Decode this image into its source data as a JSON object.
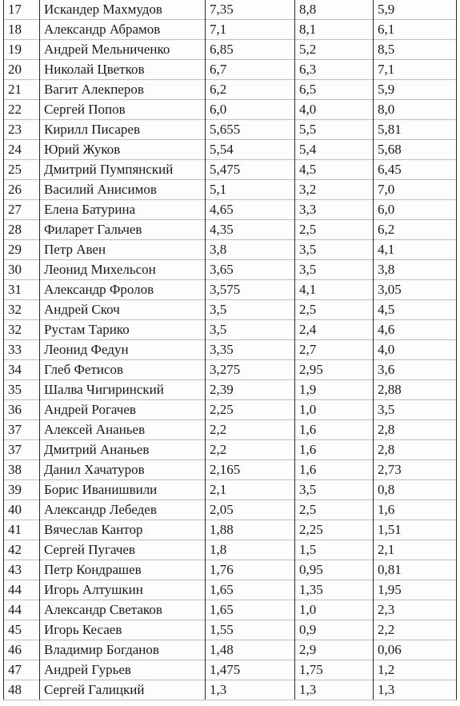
{
  "table": {
    "rows": [
      {
        "rank": "17",
        "name": "Искандер Махмудов",
        "v1": "7,35",
        "v2": "8,8",
        "v3": "5,9"
      },
      {
        "rank": "18",
        "name": "Александр Абрамов",
        "v1": "7,1",
        "v2": "8,1",
        "v3": "6,1"
      },
      {
        "rank": "19",
        "name": "Андрей Мельниченко",
        "v1": "6,85",
        "v2": "5,2",
        "v3": "8,5"
      },
      {
        "rank": "20",
        "name": "Николай Цветков",
        "v1": "6,7",
        "v2": "6,3",
        "v3": "7,1"
      },
      {
        "rank": "21",
        "name": "Вагит Алекперов",
        "v1": "6,2",
        "v2": "6,5",
        "v3": "5,9"
      },
      {
        "rank": "22",
        "name": "Сергей Попов",
        "v1": "6,0",
        "v2": "4,0",
        "v3": "8,0"
      },
      {
        "rank": "23",
        "name": "Кирилл Писарев",
        "v1": "5,655",
        "v2": "5,5",
        "v3": "5,81"
      },
      {
        "rank": "24",
        "name": "Юрий Жуков",
        "v1": "5,54",
        "v2": "5,4",
        "v3": "5,68"
      },
      {
        "rank": "25",
        "name": "Дмитрий Пумпянский",
        "v1": "5,475",
        "v2": "4,5",
        "v3": "6,45"
      },
      {
        "rank": "26",
        "name": "Василий Анисимов",
        "v1": "5,1",
        "v2": "3,2",
        "v3": "7,0"
      },
      {
        "rank": "27",
        "name": "Елена Батурина",
        "v1": "4,65",
        "v2": "3,3",
        "v3": "6,0"
      },
      {
        "rank": "28",
        "name": "Филарет Гальчев",
        "v1": "4,35",
        "v2": "2,5",
        "v3": "6,2"
      },
      {
        "rank": "29",
        "name": "Петр Авен",
        "v1": "3,8",
        "v2": "3,5",
        "v3": "4,1"
      },
      {
        "rank": "30",
        "name": "Леонид Михельсон",
        "v1": "3,65",
        "v2": "3,5",
        "v3": "3,8"
      },
      {
        "rank": "31",
        "name": "Александр Фролов",
        "v1": "3,575",
        "v2": "4,1",
        "v3": "3,05"
      },
      {
        "rank": "32",
        "name": "Андрей Скоч",
        "v1": "3,5",
        "v2": "2,5",
        "v3": "4,5"
      },
      {
        "rank": "32",
        "name": "Рустам Тарико",
        "v1": "3,5",
        "v2": "2,4",
        "v3": "4,6"
      },
      {
        "rank": "33",
        "name": "Леонид Федун",
        "v1": "3,35",
        "v2": "2,7",
        "v3": "4,0"
      },
      {
        "rank": "34",
        "name": "Глеб Фетисов",
        "v1": "3,275",
        "v2": "2,95",
        "v3": "3,6"
      },
      {
        "rank": "35",
        "name": "Шалва Чигиринский",
        "v1": "2,39",
        "v2": "1,9",
        "v3": "2,88"
      },
      {
        "rank": "36",
        "name": "Андрей Рогачев",
        "v1": "2,25",
        "v2": "1,0",
        "v3": "3,5"
      },
      {
        "rank": "37",
        "name": "Алексей Ананьев",
        "v1": "2,2",
        "v2": "1,6",
        "v3": "2,8"
      },
      {
        "rank": "37",
        "name": "Дмитрий Ананьев",
        "v1": "2,2",
        "v2": "1,6",
        "v3": "2,8"
      },
      {
        "rank": "38",
        "name": "Данил Хачатуров",
        "v1": "2,165",
        "v2": "1,6",
        "v3": "2,73"
      },
      {
        "rank": "39",
        "name": "Борис Иванишвили",
        "v1": "2,1",
        "v2": "3,5",
        "v3": "0,8"
      },
      {
        "rank": "40",
        "name": "Александр Лебедев",
        "v1": "2,05",
        "v2": "2,5",
        "v3": "1,6"
      },
      {
        "rank": "41",
        "name": "Вячеслав Кантор",
        "v1": "1,88",
        "v2": "2,25",
        "v3": "1,51"
      },
      {
        "rank": "42",
        "name": "Сергей Пугачев",
        "v1": "1,8",
        "v2": "1,5",
        "v3": "2,1"
      },
      {
        "rank": "43",
        "name": "Петр Кондрашев",
        "v1": "1,76",
        "v2": "0,95",
        "v3": "0,81"
      },
      {
        "rank": "44",
        "name": "Игорь Алтушкин",
        "v1": "1,65",
        "v2": "1,35",
        "v3": "1,95"
      },
      {
        "rank": "44",
        "name": "Александр Светаков",
        "v1": "1,65",
        "v2": "1,0",
        "v3": "2,3"
      },
      {
        "rank": "45",
        "name": "Игорь Кесаев",
        "v1": "1,55",
        "v2": "0,9",
        "v3": "2,2"
      },
      {
        "rank": "46",
        "name": "Владимир Богданов",
        "v1": "1,48",
        "v2": "2,9",
        "v3": "0,06"
      },
      {
        "rank": "47",
        "name": "Андрей Гурьев",
        "v1": "1,475",
        "v2": "1,75",
        "v3": "1,2"
      },
      {
        "rank": "48",
        "name": "Сергей Галицкий",
        "v1": "1,3",
        "v2": "1,3",
        "v3": "1,3"
      }
    ]
  }
}
